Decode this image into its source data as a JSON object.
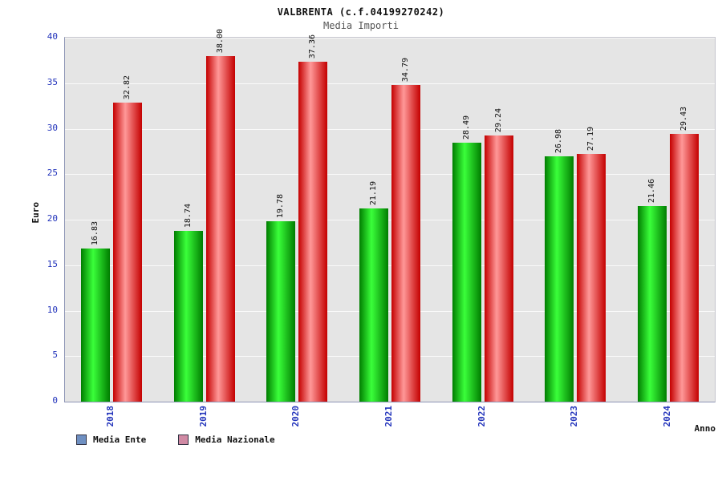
{
  "chart_data": {
    "type": "bar",
    "title": "VALBRENTA (c.f.04199270242)",
    "subtitle": "Media Importi",
    "xlabel": "Anno",
    "ylabel": "Euro",
    "ylim": [
      0,
      40
    ],
    "ytick_step": 5,
    "grid": true,
    "legend_position": "bottom",
    "categories": [
      "2018",
      "2019",
      "2020",
      "2021",
      "2022",
      "2023",
      "2024"
    ],
    "series": [
      {
        "name": "Media Ente",
        "legend_color": "#6f90c2",
        "bar_edge_color": "#007d00",
        "bar_mid_color": "#3aff3a",
        "values": [
          16.83,
          18.74,
          19.78,
          21.19,
          28.49,
          26.98,
          21.46
        ]
      },
      {
        "name": "Media Nazionale",
        "legend_color": "#d08aa4",
        "bar_edge_color": "#c40000",
        "bar_mid_color": "#ff9898",
        "values": [
          32.82,
          38.0,
          37.36,
          34.79,
          29.24,
          27.19,
          29.43
        ]
      }
    ]
  }
}
